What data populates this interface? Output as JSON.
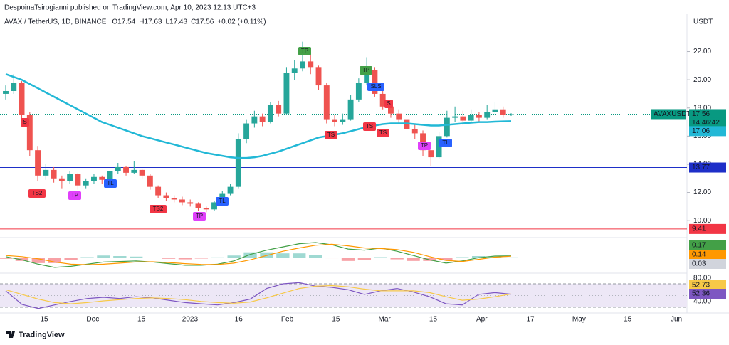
{
  "header": {
    "publisher": "DespoinaTsirogianni published on TradingView.com, Apr 10, 2023 12:13 UTC+3"
  },
  "chart_data": [
    {
      "type": "candlestick",
      "legend": {
        "symbol": "AVAX / TetherUS, 1D, BINANCE",
        "fields": [
          {
            "key": "O",
            "value": "17.54"
          },
          {
            "key": "H",
            "value": "17.63"
          },
          {
            "key": "L",
            "value": "17.43"
          },
          {
            "key": "C",
            "value": "17.56"
          }
        ],
        "change": "+0.02 (+0.11%)",
        "color": "#089981"
      },
      "unit": "USDT",
      "x_labels": [
        "15",
        "Dec",
        "15",
        "2023",
        "16",
        "Feb",
        "15",
        "Mar",
        "15",
        "Apr",
        "17",
        "May",
        "15",
        "Jun"
      ],
      "ylim": [
        9,
        24.4
      ],
      "yticks": [
        {
          "value": 10,
          "label": "10.00"
        },
        {
          "value": 12,
          "label": "12.00"
        },
        {
          "value": 14,
          "label": "14.00"
        },
        {
          "value": 16,
          "label": "16.00"
        },
        {
          "value": 18,
          "label": "18.00"
        },
        {
          "value": 20,
          "label": "20.00"
        },
        {
          "value": 22,
          "label": "22.00"
        }
      ],
      "up_color": "#26a69a",
      "down_color": "#ef5350",
      "ohlc": [
        [
          19.0,
          19.6,
          18.6,
          19.2
        ],
        [
          19.2,
          20.4,
          19.0,
          19.8
        ],
        [
          19.8,
          19.9,
          17.2,
          17.5
        ],
        [
          17.5,
          17.7,
          14.6,
          15.0
        ],
        [
          15.0,
          15.3,
          12.8,
          13.2
        ],
        [
          13.2,
          14.0,
          12.9,
          13.6
        ],
        [
          13.6,
          13.8,
          12.7,
          13.0
        ],
        [
          13.0,
          13.2,
          12.3,
          12.8
        ],
        [
          12.8,
          13.5,
          12.6,
          13.3
        ],
        [
          13.3,
          13.4,
          12.2,
          12.5
        ],
        [
          12.5,
          13.0,
          12.3,
          12.8
        ],
        [
          12.8,
          13.3,
          12.6,
          13.1
        ],
        [
          13.1,
          13.2,
          12.6,
          12.9
        ],
        [
          12.9,
          13.7,
          12.8,
          13.5
        ],
        [
          13.5,
          14.1,
          13.3,
          13.8
        ],
        [
          13.8,
          13.9,
          13.2,
          13.4
        ],
        [
          13.4,
          14.2,
          13.3,
          13.6
        ],
        [
          13.6,
          13.7,
          13.0,
          13.2
        ],
        [
          13.2,
          13.3,
          12.2,
          12.4
        ],
        [
          12.4,
          12.5,
          11.6,
          11.8
        ],
        [
          11.8,
          12.0,
          11.4,
          11.6
        ],
        [
          11.6,
          11.8,
          11.3,
          11.5
        ],
        [
          11.5,
          11.7,
          11.1,
          11.3
        ],
        [
          11.3,
          11.5,
          11.0,
          11.2
        ],
        [
          11.2,
          11.3,
          10.7,
          10.9
        ],
        [
          10.9,
          11.0,
          10.6,
          10.8
        ],
        [
          10.8,
          11.4,
          10.7,
          11.3
        ],
        [
          11.3,
          12.1,
          11.2,
          11.9
        ],
        [
          11.9,
          12.6,
          11.8,
          12.4
        ],
        [
          12.4,
          16.2,
          12.3,
          15.8
        ],
        [
          15.8,
          17.2,
          15.5,
          16.9
        ],
        [
          16.9,
          17.8,
          16.6,
          17.4
        ],
        [
          17.4,
          17.6,
          16.7,
          17.0
        ],
        [
          17.0,
          18.4,
          16.9,
          18.2
        ],
        [
          18.2,
          18.5,
          17.4,
          17.6
        ],
        [
          17.6,
          20.9,
          17.5,
          20.5
        ],
        [
          20.5,
          21.4,
          20.0,
          20.8
        ],
        [
          20.8,
          22.7,
          20.6,
          21.3
        ],
        [
          21.3,
          21.8,
          20.4,
          20.9
        ],
        [
          20.9,
          21.0,
          19.3,
          19.6
        ],
        [
          19.6,
          19.8,
          16.9,
          17.2
        ],
        [
          17.2,
          17.5,
          16.7,
          17.0
        ],
        [
          17.0,
          17.6,
          16.8,
          17.2
        ],
        [
          17.2,
          18.9,
          17.1,
          18.6
        ],
        [
          18.6,
          20.1,
          18.4,
          19.8
        ],
        [
          19.8,
          21.6,
          19.6,
          20.7
        ],
        [
          20.7,
          20.9,
          18.8,
          19.0
        ],
        [
          19.0,
          19.2,
          17.9,
          18.1
        ],
        [
          18.1,
          18.3,
          17.3,
          17.6
        ],
        [
          17.6,
          17.9,
          16.9,
          17.2
        ],
        [
          17.2,
          17.4,
          16.3,
          16.5
        ],
        [
          16.5,
          16.8,
          15.8,
          16.2
        ],
        [
          16.2,
          16.4,
          14.6,
          15.0
        ],
        [
          15.0,
          15.2,
          13.9,
          14.5
        ],
        [
          14.5,
          16.3,
          14.4,
          16.0
        ],
        [
          16.0,
          17.8,
          15.9,
          17.3
        ],
        [
          17.3,
          18.1,
          17.0,
          17.4
        ],
        [
          17.4,
          17.8,
          16.8,
          17.1
        ],
        [
          17.1,
          17.9,
          17.0,
          17.5
        ],
        [
          17.5,
          17.7,
          17.0,
          17.3
        ],
        [
          17.3,
          18.2,
          17.2,
          17.7
        ],
        [
          17.7,
          18.4,
          17.5,
          17.9
        ],
        [
          17.9,
          18.1,
          17.3,
          17.5
        ],
        [
          17.54,
          17.63,
          17.43,
          17.56
        ]
      ],
      "moving_average": {
        "color": "#22b8d6",
        "values": [
          20.4,
          20.2,
          20.0,
          19.7,
          19.4,
          19.1,
          18.8,
          18.5,
          18.2,
          17.9,
          17.6,
          17.3,
          17.0,
          16.8,
          16.6,
          16.4,
          16.2,
          16.0,
          15.85,
          15.7,
          15.55,
          15.4,
          15.25,
          15.1,
          14.95,
          14.8,
          14.7,
          14.6,
          14.5,
          14.45,
          14.45,
          14.5,
          14.6,
          14.75,
          14.9,
          15.1,
          15.3,
          15.5,
          15.7,
          15.9,
          16.0,
          16.1,
          16.2,
          16.35,
          16.5,
          16.65,
          16.75,
          16.85,
          16.9,
          16.9,
          16.9,
          16.85,
          16.8,
          16.75,
          16.75,
          16.8,
          16.85,
          16.9,
          16.95,
          17.0,
          17.0,
          17.03,
          17.05,
          17.06
        ]
      },
      "levels": [
        {
          "value": 13.77,
          "color": "#1e2fc8"
        },
        {
          "value": 9.41,
          "color": "#f23645"
        }
      ],
      "last_price": {
        "symbol": "AVAXUSDT",
        "value": 17.56,
        "countdown": "14:46:42",
        "color": "#089981"
      },
      "signals": [
        {
          "text": "S",
          "color": "#f23645"
        },
        {
          "text": "TS2",
          "color": "#f23645"
        },
        {
          "text": "TP",
          "color": "#e040fb"
        },
        {
          "text": "TL",
          "color": "#2962ff"
        },
        {
          "text": "TS2",
          "color": "#f23645"
        },
        {
          "text": "TP",
          "color": "#e040fb"
        },
        {
          "text": "TL",
          "color": "#2962ff"
        },
        {
          "text": "TP",
          "color": "#43a047"
        },
        {
          "text": "TS",
          "color": "#f23645"
        },
        {
          "text": "TP",
          "color": "#43a047"
        },
        {
          "text": "SLS",
          "color": "#2962ff"
        },
        {
          "text": "TS",
          "color": "#f23645"
        },
        {
          "text": "S",
          "color": "#f23645"
        },
        {
          "text": "TS",
          "color": "#f23645"
        },
        {
          "text": "TP",
          "color": "#e040fb"
        },
        {
          "text": "TL",
          "color": "#2962ff"
        }
      ]
    },
    {
      "type": "macd",
      "ylim": [
        -1.3,
        1.6
      ],
      "series": [
        {
          "color": "#43a047",
          "values": [
            0.1,
            -0.2,
            -0.6,
            -0.9,
            -0.8,
            -0.6,
            -0.4,
            -0.35,
            -0.3,
            -0.4,
            -0.55,
            -0.7,
            -0.7,
            -0.6,
            -0.3,
            0.3,
            0.7,
            1.0,
            1.3,
            1.4,
            1.2,
            0.8,
            0.7,
            0.9,
            0.6,
            0.2,
            -0.2,
            -0.5,
            -0.3,
            0.0,
            0.15,
            0.17
          ]
        },
        {
          "color": "#ff9800",
          "values": [
            0.2,
            0.1,
            -0.1,
            -0.4,
            -0.6,
            -0.65,
            -0.6,
            -0.5,
            -0.4,
            -0.38,
            -0.45,
            -0.55,
            -0.62,
            -0.63,
            -0.5,
            -0.2,
            0.2,
            0.6,
            0.9,
            1.15,
            1.25,
            1.1,
            0.9,
            0.85,
            0.75,
            0.5,
            0.1,
            -0.25,
            -0.35,
            -0.15,
            0.05,
            0.14
          ]
        }
      ],
      "histogram": {
        "up_color": "#9fd9d2",
        "down_color": "#f7a1a6",
        "label_color": "#d1d4dc",
        "values": [
          -0.1,
          -0.3,
          -0.5,
          -0.5,
          -0.2,
          0.05,
          0.2,
          0.15,
          0.1,
          -0.02,
          -0.1,
          -0.15,
          -0.08,
          0.03,
          0.2,
          0.5,
          0.5,
          0.4,
          0.4,
          0.25,
          -0.05,
          -0.3,
          -0.2,
          0.05,
          -0.15,
          -0.3,
          -0.3,
          -0.25,
          0.05,
          0.15,
          0.1,
          0.03
        ]
      }
    },
    {
      "type": "rsi",
      "ylim": [
        24,
        87
      ],
      "yticks": [
        {
          "value": 40,
          "label": "40.00"
        },
        {
          "value": 80,
          "label": "80.00"
        }
      ],
      "band": [
        30,
        70
      ],
      "band_color": "#ede7f6",
      "midline": 50,
      "series": [
        {
          "color": "#7e57c2",
          "values": [
            58,
            35,
            28,
            34,
            40,
            45,
            47,
            45,
            48,
            46,
            42,
            38,
            36,
            34,
            38,
            44,
            62,
            70,
            72,
            66,
            64,
            60,
            52,
            58,
            62,
            56,
            48,
            36,
            34,
            52,
            55,
            52.36
          ]
        },
        {
          "color": "#f7c948",
          "values": [
            60,
            52,
            44,
            38,
            36,
            38,
            41,
            43,
            45,
            46,
            45,
            43,
            40,
            38,
            37,
            39,
            46,
            54,
            62,
            66,
            67,
            65,
            61,
            58,
            58,
            58,
            55,
            48,
            42,
            44,
            48,
            52.73
          ]
        }
      ]
    }
  ],
  "footer": {
    "brand": "TradingView"
  }
}
